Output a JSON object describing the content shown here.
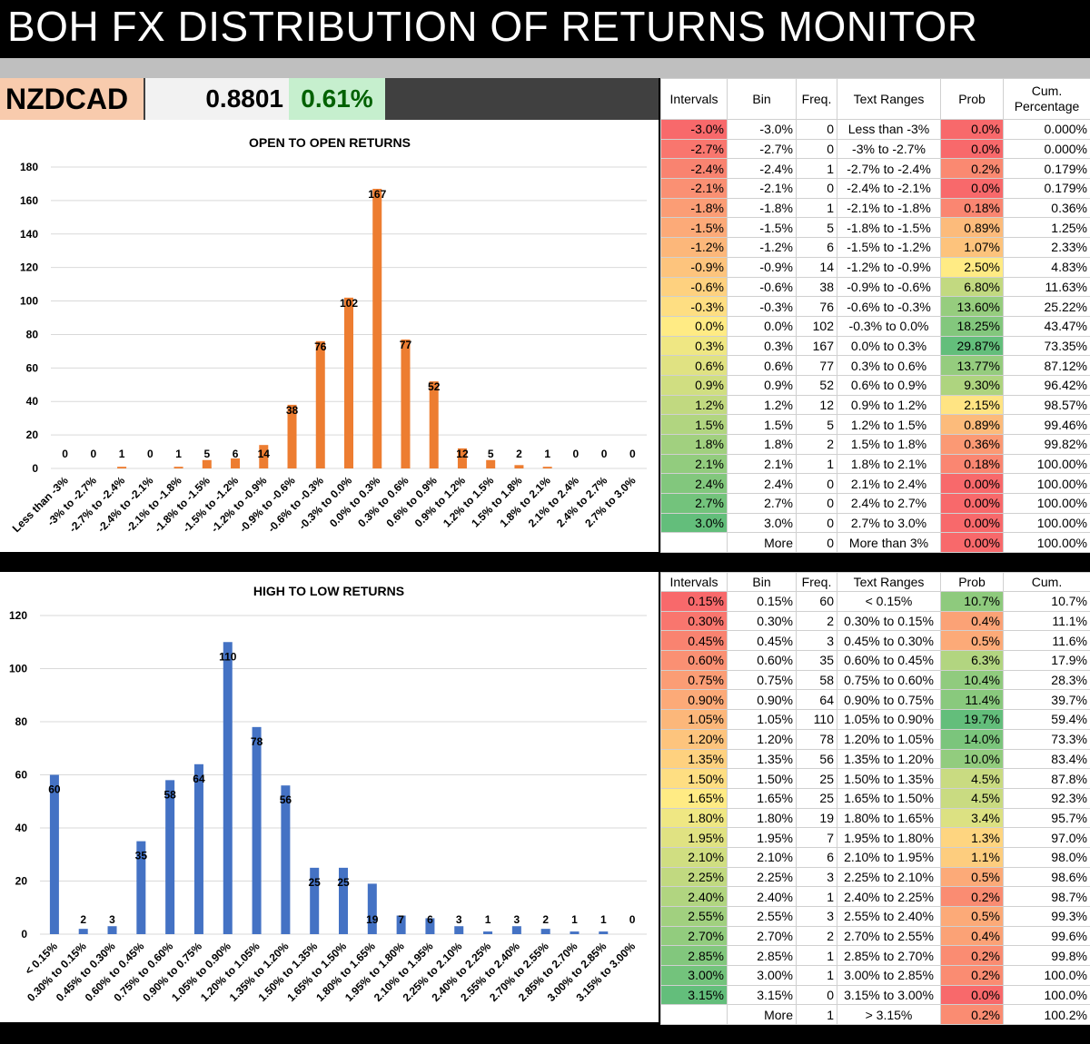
{
  "title": "BOH FX DISTRIBUTION OF RETURNS MONITOR",
  "ticker": {
    "symbol": "NZDCAD",
    "price": "0.8801",
    "change": "0.61%"
  },
  "colors": {
    "orange_bar": "#ed7d31",
    "blue_bar": "#4472c4",
    "heat_low": "#f8696b",
    "heat_mid": "#ffeb84",
    "heat_high": "#63be7b"
  },
  "chart_data": [
    {
      "type": "bar",
      "title": "OPEN TO OPEN RETURNS",
      "categories": [
        "Less than -3%",
        "-3% to -2.7%",
        "-2.7% to -2.4%",
        "-2.4% to -2.1%",
        "-2.1% to -1.8%",
        "-1.8% to -1.5%",
        "-1.5% to -1.2%",
        "-1.2% to -0.9%",
        "-0.9% to -0.6%",
        "-0.6% to -0.3%",
        "-0.3% to 0.0%",
        "0.0% to 0.3%",
        "0.3% to 0.6%",
        "0.6% to 0.9%",
        "0.9% to 1.2%",
        "1.2% to 1.5%",
        "1.5% to 1.8%",
        "1.8% to 2.1%",
        "2.1% to 2.4%",
        "2.4% to 2.7%",
        "2.7% to 3.0%"
      ],
      "values": [
        0,
        0,
        1,
        0,
        1,
        5,
        6,
        14,
        38,
        76,
        102,
        167,
        77,
        52,
        12,
        5,
        2,
        1,
        0,
        0,
        0
      ],
      "ylim": [
        0,
        180
      ],
      "yticks": [
        0,
        20,
        40,
        60,
        80,
        100,
        120,
        140,
        160,
        180
      ],
      "color": "#ed7d31",
      "grid": true
    },
    {
      "type": "bar",
      "title": "HIGH TO LOW RETURNS",
      "categories": [
        "< 0.15%",
        "0.30% to 0.15%",
        "0.45% to 0.30%",
        "0.60% to 0.45%",
        "0.75% to 0.60%",
        "0.90% to 0.75%",
        "1.05% to 0.90%",
        "1.20% to 1.05%",
        "1.35% to 1.20%",
        "1.50% to 1.35%",
        "1.65% to 1.50%",
        "1.80% to 1.65%",
        "1.95% to 1.80%",
        "2.10% to 1.95%",
        "2.25% to 2.10%",
        "2.40% to 2.25%",
        "2.55% to 2.40%",
        "2.70% to 2.55%",
        "2.85% to 2.70%",
        "3.00% to 2.85%",
        "3.15% to 3.00%"
      ],
      "values": [
        60,
        2,
        3,
        35,
        58,
        64,
        110,
        78,
        56,
        25,
        25,
        19,
        7,
        6,
        3,
        1,
        3,
        2,
        1,
        1,
        0
      ],
      "ylim": [
        0,
        120
      ],
      "yticks": [
        0,
        20,
        40,
        60,
        80,
        100,
        120
      ],
      "color": "#4472c4",
      "grid": true
    }
  ],
  "table1": {
    "headers": [
      "Intervals",
      "Bin",
      "Freq.",
      "Text Ranges",
      "Prob",
      "Cum."
    ],
    "header_sub": "Percentage",
    "rows": [
      [
        "-3.0%",
        "-3.0%",
        "0",
        "Less than -3%",
        "0.0%",
        "0.000%"
      ],
      [
        "-2.7%",
        "-2.7%",
        "0",
        "-3% to -2.7%",
        "0.0%",
        "0.000%"
      ],
      [
        "-2.4%",
        "-2.4%",
        "1",
        "-2.7% to -2.4%",
        "0.2%",
        "0.179%"
      ],
      [
        "-2.1%",
        "-2.1%",
        "0",
        "-2.4% to -2.1%",
        "0.0%",
        "0.179%"
      ],
      [
        "-1.8%",
        "-1.8%",
        "1",
        "-2.1% to -1.8%",
        "0.18%",
        "0.36%"
      ],
      [
        "-1.5%",
        "-1.5%",
        "5",
        "-1.8% to -1.5%",
        "0.89%",
        "1.25%"
      ],
      [
        "-1.2%",
        "-1.2%",
        "6",
        "-1.5% to -1.2%",
        "1.07%",
        "2.33%"
      ],
      [
        "-0.9%",
        "-0.9%",
        "14",
        "-1.2% to -0.9%",
        "2.50%",
        "4.83%"
      ],
      [
        "-0.6%",
        "-0.6%",
        "38",
        "-0.9% to -0.6%",
        "6.80%",
        "11.63%"
      ],
      [
        "-0.3%",
        "-0.3%",
        "76",
        "-0.6% to -0.3%",
        "13.60%",
        "25.22%"
      ],
      [
        "0.0%",
        "0.0%",
        "102",
        "-0.3% to 0.0%",
        "18.25%",
        "43.47%"
      ],
      [
        "0.3%",
        "0.3%",
        "167",
        "0.0% to 0.3%",
        "29.87%",
        "73.35%"
      ],
      [
        "0.6%",
        "0.6%",
        "77",
        "0.3% to 0.6%",
        "13.77%",
        "87.12%"
      ],
      [
        "0.9%",
        "0.9%",
        "52",
        "0.6% to 0.9%",
        "9.30%",
        "96.42%"
      ],
      [
        "1.2%",
        "1.2%",
        "12",
        "0.9% to 1.2%",
        "2.15%",
        "98.57%"
      ],
      [
        "1.5%",
        "1.5%",
        "5",
        "1.2% to 1.5%",
        "0.89%",
        "99.46%"
      ],
      [
        "1.8%",
        "1.8%",
        "2",
        "1.5% to 1.8%",
        "0.36%",
        "99.82%"
      ],
      [
        "2.1%",
        "2.1%",
        "1",
        "1.8% to 2.1%",
        "0.18%",
        "100.00%"
      ],
      [
        "2.4%",
        "2.4%",
        "0",
        "2.1% to 2.4%",
        "0.00%",
        "100.00%"
      ],
      [
        "2.7%",
        "2.7%",
        "0",
        "2.4% to 2.7%",
        "0.00%",
        "100.00%"
      ],
      [
        "3.0%",
        "3.0%",
        "0",
        "2.7% to 3.0%",
        "0.00%",
        "100.00%"
      ],
      [
        "",
        "More",
        "0",
        "More than 3%",
        "0.00%",
        "100.00%"
      ]
    ]
  },
  "table2": {
    "headers": [
      "Intervals",
      "Bin",
      "Freq.",
      "Text Ranges",
      "Prob",
      "Cum."
    ],
    "rows": [
      [
        "0.15%",
        "0.15%",
        "60",
        "< 0.15%",
        "10.7%",
        "10.7%"
      ],
      [
        "0.30%",
        "0.30%",
        "2",
        "0.30% to 0.15%",
        "0.4%",
        "11.1%"
      ],
      [
        "0.45%",
        "0.45%",
        "3",
        "0.45% to 0.30%",
        "0.5%",
        "11.6%"
      ],
      [
        "0.60%",
        "0.60%",
        "35",
        "0.60% to 0.45%",
        "6.3%",
        "17.9%"
      ],
      [
        "0.75%",
        "0.75%",
        "58",
        "0.75% to 0.60%",
        "10.4%",
        "28.3%"
      ],
      [
        "0.90%",
        "0.90%",
        "64",
        "0.90% to 0.75%",
        "11.4%",
        "39.7%"
      ],
      [
        "1.05%",
        "1.05%",
        "110",
        "1.05% to 0.90%",
        "19.7%",
        "59.4%"
      ],
      [
        "1.20%",
        "1.20%",
        "78",
        "1.20% to 1.05%",
        "14.0%",
        "73.3%"
      ],
      [
        "1.35%",
        "1.35%",
        "56",
        "1.35% to 1.20%",
        "10.0%",
        "83.4%"
      ],
      [
        "1.50%",
        "1.50%",
        "25",
        "1.50% to 1.35%",
        "4.5%",
        "87.8%"
      ],
      [
        "1.65%",
        "1.65%",
        "25",
        "1.65% to 1.50%",
        "4.5%",
        "92.3%"
      ],
      [
        "1.80%",
        "1.80%",
        "19",
        "1.80% to 1.65%",
        "3.4%",
        "95.7%"
      ],
      [
        "1.95%",
        "1.95%",
        "7",
        "1.95% to 1.80%",
        "1.3%",
        "97.0%"
      ],
      [
        "2.10%",
        "2.10%",
        "6",
        "2.10% to 1.95%",
        "1.1%",
        "98.0%"
      ],
      [
        "2.25%",
        "2.25%",
        "3",
        "2.25% to 2.10%",
        "0.5%",
        "98.6%"
      ],
      [
        "2.40%",
        "2.40%",
        "1",
        "2.40% to 2.25%",
        "0.2%",
        "98.7%"
      ],
      [
        "2.55%",
        "2.55%",
        "3",
        "2.55% to 2.40%",
        "0.5%",
        "99.3%"
      ],
      [
        "2.70%",
        "2.70%",
        "2",
        "2.70% to 2.55%",
        "0.4%",
        "99.6%"
      ],
      [
        "2.85%",
        "2.85%",
        "1",
        "2.85% to 2.70%",
        "0.2%",
        "99.8%"
      ],
      [
        "3.00%",
        "3.00%",
        "1",
        "3.00% to 2.85%",
        "0.2%",
        "100.0%"
      ],
      [
        "3.15%",
        "3.15%",
        "0",
        "3.15% to 3.00%",
        "0.0%",
        "100.0%"
      ],
      [
        "",
        "More",
        "1",
        "> 3.15%",
        "0.2%",
        "100.2%"
      ]
    ]
  }
}
